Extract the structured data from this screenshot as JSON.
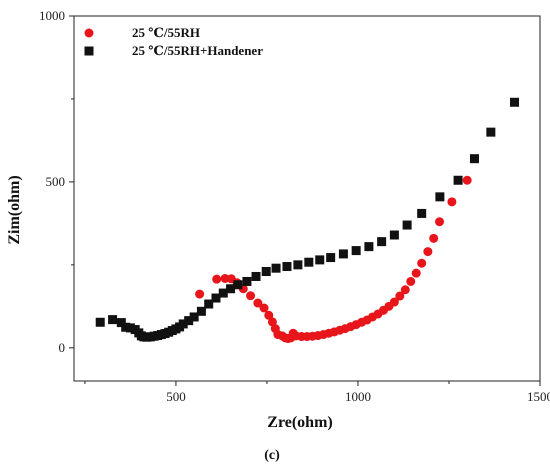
{
  "chart_data": {
    "type": "scatter",
    "xlabel": "Zre(ohm)",
    "ylabel": "Zim(ohm)",
    "caption": "(c)",
    "xlim": [
      220,
      1500
    ],
    "ylim": [
      -100,
      1000
    ],
    "xticks": [
      500,
      1000,
      1500
    ],
    "xtick_labels": [
      "500",
      "1000",
      "1500"
    ],
    "yticks": [
      0,
      500,
      1000
    ],
    "ytick_labels": [
      "0",
      "500",
      "1000"
    ],
    "legend_position": "top-left",
    "grid": false,
    "series": [
      {
        "name": "25 ℃/55RH",
        "marker": "circle",
        "color": "#e8151b",
        "points": [
          [
            565,
            162
          ],
          [
            612,
            207
          ],
          [
            635,
            209
          ],
          [
            652,
            208
          ],
          [
            668,
            196
          ],
          [
            685,
            178
          ],
          [
            705,
            157
          ],
          [
            725,
            135
          ],
          [
            742,
            120
          ],
          [
            755,
            98
          ],
          [
            765,
            78
          ],
          [
            773,
            58
          ],
          [
            780,
            40
          ],
          [
            792,
            36
          ],
          [
            800,
            30
          ],
          [
            808,
            28
          ],
          [
            816,
            30
          ],
          [
            822,
            44
          ],
          [
            830,
            36
          ],
          [
            845,
            34
          ],
          [
            860,
            34
          ],
          [
            875,
            35
          ],
          [
            890,
            37
          ],
          [
            905,
            40
          ],
          [
            920,
            44
          ],
          [
            935,
            48
          ],
          [
            950,
            53
          ],
          [
            965,
            58
          ],
          [
            980,
            64
          ],
          [
            995,
            70
          ],
          [
            1010,
            77
          ],
          [
            1025,
            84
          ],
          [
            1040,
            93
          ],
          [
            1055,
            102
          ],
          [
            1070,
            113
          ],
          [
            1085,
            125
          ],
          [
            1100,
            138
          ],
          [
            1115,
            156
          ],
          [
            1130,
            175
          ],
          [
            1145,
            200
          ],
          [
            1160,
            225
          ],
          [
            1175,
            255
          ],
          [
            1192,
            290
          ],
          [
            1208,
            330
          ],
          [
            1224,
            380
          ],
          [
            1258,
            440
          ],
          [
            1300,
            505
          ]
        ]
      },
      {
        "name": "25 ℃/55RH+Handener",
        "marker": "square",
        "color": "#111111",
        "points": [
          [
            292,
            77
          ],
          [
            326,
            85
          ],
          [
            350,
            76
          ],
          [
            362,
            62
          ],
          [
            375,
            60
          ],
          [
            388,
            55
          ],
          [
            398,
            45
          ],
          [
            405,
            36
          ],
          [
            412,
            33
          ],
          [
            420,
            32
          ],
          [
            430,
            33
          ],
          [
            440,
            35
          ],
          [
            450,
            37
          ],
          [
            460,
            40
          ],
          [
            470,
            43
          ],
          [
            480,
            47
          ],
          [
            490,
            52
          ],
          [
            500,
            57
          ],
          [
            510,
            63
          ],
          [
            520,
            72
          ],
          [
            535,
            82
          ],
          [
            550,
            93
          ],
          [
            570,
            110
          ],
          [
            590,
            132
          ],
          [
            610,
            150
          ],
          [
            630,
            165
          ],
          [
            650,
            178
          ],
          [
            670,
            190
          ],
          [
            695,
            200
          ],
          [
            720,
            215
          ],
          [
            748,
            230
          ],
          [
            775,
            240
          ],
          [
            805,
            245
          ],
          [
            835,
            250
          ],
          [
            865,
            258
          ],
          [
            895,
            265
          ],
          [
            925,
            272
          ],
          [
            960,
            283
          ],
          [
            995,
            293
          ],
          [
            1030,
            305
          ],
          [
            1065,
            320
          ],
          [
            1100,
            340
          ],
          [
            1135,
            370
          ],
          [
            1175,
            405
          ],
          [
            1225,
            455
          ],
          [
            1275,
            505
          ],
          [
            1320,
            570
          ],
          [
            1365,
            650
          ],
          [
            1430,
            740
          ]
        ]
      }
    ]
  }
}
